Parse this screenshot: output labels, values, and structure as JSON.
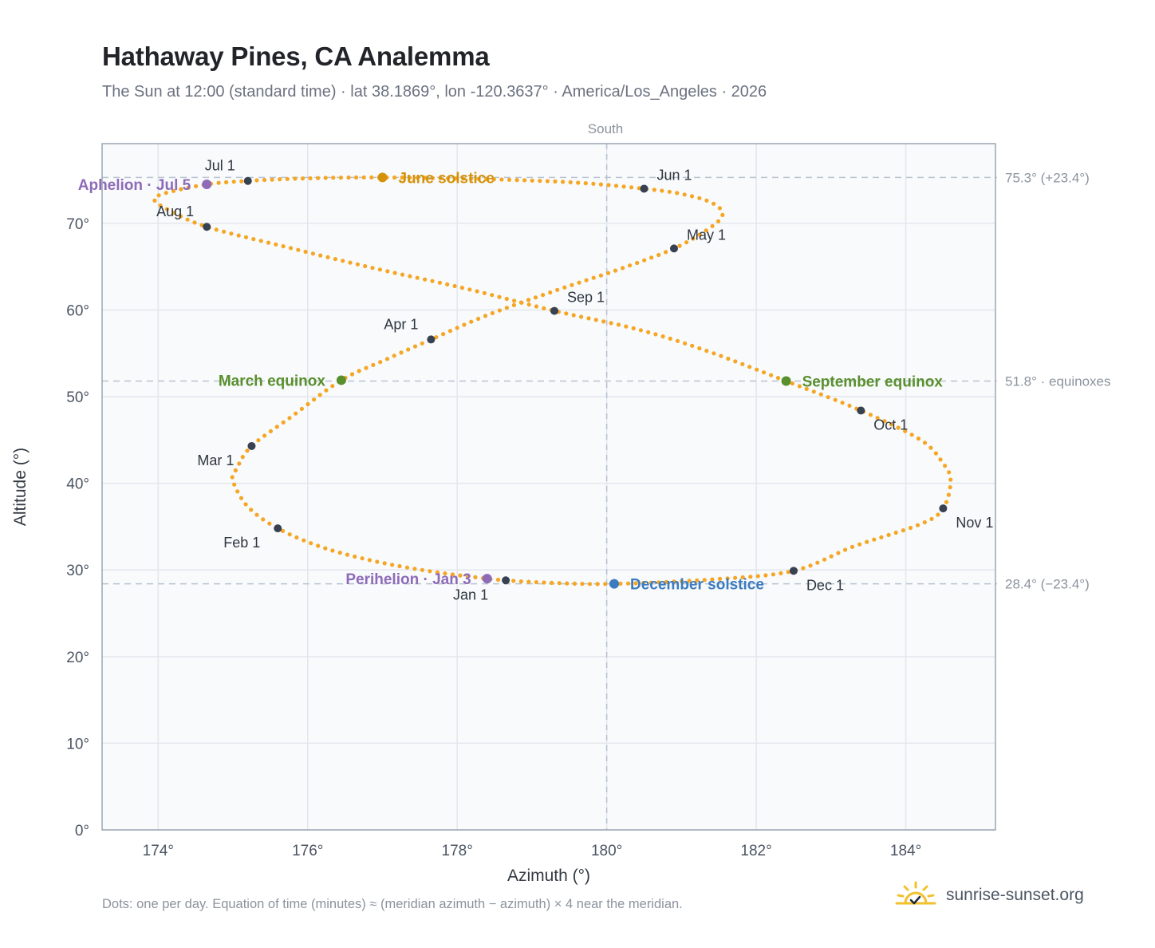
{
  "header": {
    "title": "Hathaway Pines, CA Analemma",
    "subtitle": "The Sun at 12:00 (standard time) · lat 38.1869°, lon -120.3637° · America/Los_Angeles · 2026"
  },
  "footer": {
    "note": "Dots: one per day. Equation of time (minutes) ≈ (meridian azimuth − azimuth) × 4 near the meridian.",
    "brand": "sunrise-sunset.org"
  },
  "colors": {
    "analemma": "#f5a623",
    "month_marker": "#374151",
    "solstice_june": "#d4920b",
    "solstice_december": "#3b7bbf",
    "equinox": "#5a8f2e",
    "apsis": "#8e6bb8",
    "grid": "#e3e7ec",
    "reference_line": "#b7c3cf",
    "plot_background": "#f8fafc",
    "frame": "#9ba6b4"
  },
  "chart_data": {
    "type": "scatter",
    "title": "Hathaway Pines, CA Analemma",
    "xlabel": "Azimuth (°)",
    "ylabel": "Altitude (°)",
    "xlim": [
      173.25,
      185.2
    ],
    "ylim": [
      0,
      79.2
    ],
    "x_ticks": [
      174,
      176,
      178,
      180,
      182,
      184
    ],
    "x_tick_labels": [
      "174°",
      "176°",
      "178°",
      "180°",
      "182°",
      "184°"
    ],
    "y_ticks": [
      0,
      10,
      20,
      30,
      40,
      50,
      60,
      70
    ],
    "y_tick_labels": [
      "0°",
      "10°",
      "20°",
      "30°",
      "40°",
      "50°",
      "60°",
      "70°"
    ],
    "grid": true,
    "meridian": {
      "azimuth": 180,
      "label": "South"
    },
    "reference_lines": [
      {
        "altitude": 75.3,
        "label": "75.3° (+23.4°)"
      },
      {
        "altitude": 51.8,
        "label": "51.8° · equinoxes"
      },
      {
        "altitude": 28.4,
        "label": "28.4° (−23.4°)"
      }
    ],
    "analemma_path": [
      [
        178.65,
        28.8
      ],
      [
        178.2,
        29.2
      ],
      [
        177.6,
        29.9
      ],
      [
        176.9,
        31.0
      ],
      [
        176.2,
        32.6
      ],
      [
        175.6,
        34.8
      ],
      [
        175.2,
        37.3
      ],
      [
        175.0,
        40.3
      ],
      [
        175.05,
        41.7
      ],
      [
        175.25,
        44.3
      ],
      [
        175.8,
        47.8
      ],
      [
        176.45,
        51.9
      ],
      [
        177.05,
        54.3
      ],
      [
        177.65,
        56.6
      ],
      [
        178.4,
        59.4
      ],
      [
        179.3,
        62.2
      ],
      [
        180.2,
        64.8
      ],
      [
        180.9,
        67.1
      ],
      [
        181.35,
        69.3
      ],
      [
        181.55,
        71.0
      ],
      [
        181.4,
        72.4
      ],
      [
        181.0,
        73.4
      ],
      [
        180.5,
        74.0
      ],
      [
        179.6,
        74.7
      ],
      [
        178.4,
        75.1
      ],
      [
        177.0,
        75.3
      ],
      [
        176.0,
        75.2
      ],
      [
        175.2,
        74.9
      ],
      [
        174.65,
        74.5
      ],
      [
        174.1,
        73.5
      ],
      [
        173.95,
        72.7
      ],
      [
        174.15,
        71.5
      ],
      [
        174.65,
        69.6
      ],
      [
        175.7,
        67.3
      ],
      [
        176.9,
        64.8
      ],
      [
        178.15,
        62.4
      ],
      [
        179.3,
        59.9
      ],
      [
        180.4,
        57.8
      ],
      [
        181.3,
        55.4
      ],
      [
        182.4,
        51.8
      ],
      [
        183.4,
        48.4
      ],
      [
        184.2,
        45.0
      ],
      [
        184.5,
        42.3
      ],
      [
        184.6,
        40.3
      ],
      [
        184.5,
        37.1
      ],
      [
        184.2,
        35.3
      ],
      [
        183.3,
        32.7
      ],
      [
        182.5,
        29.9
      ],
      [
        181.4,
        28.9
      ],
      [
        180.1,
        28.4
      ],
      [
        179.3,
        28.5
      ],
      [
        178.65,
        28.8
      ]
    ],
    "dots_per_day": 365,
    "month_markers": [
      {
        "label": "Jan 1",
        "azimuth": 178.65,
        "altitude": 28.8,
        "label_pos": "below-left"
      },
      {
        "label": "Feb 1",
        "azimuth": 175.6,
        "altitude": 34.8,
        "label_pos": "below-left"
      },
      {
        "label": "Mar 1",
        "azimuth": 175.25,
        "altitude": 44.3,
        "label_pos": "below-left"
      },
      {
        "label": "Apr 1",
        "azimuth": 177.65,
        "altitude": 56.6,
        "label_pos": "above-left"
      },
      {
        "label": "May 1",
        "azimuth": 180.9,
        "altitude": 67.1,
        "label_pos": "above-right"
      },
      {
        "label": "Jun 1",
        "azimuth": 180.5,
        "altitude": 74.0,
        "label_pos": "above-right"
      },
      {
        "label": "Jul 1",
        "azimuth": 175.2,
        "altitude": 74.9,
        "label_pos": "above-left"
      },
      {
        "label": "Aug 1",
        "azimuth": 174.65,
        "altitude": 69.6,
        "label_pos": "above-left"
      },
      {
        "label": "Sep 1",
        "azimuth": 179.3,
        "altitude": 59.9,
        "label_pos": "above-right"
      },
      {
        "label": "Oct 1",
        "azimuth": 183.4,
        "altitude": 48.4,
        "label_pos": "below-right"
      },
      {
        "label": "Nov 1",
        "azimuth": 184.5,
        "altitude": 37.1,
        "label_pos": "below-right"
      },
      {
        "label": "Dec 1",
        "azimuth": 182.5,
        "altitude": 29.9,
        "label_pos": "below-right"
      }
    ],
    "events": [
      {
        "label": "June solstice",
        "azimuth": 177.0,
        "altitude": 75.3,
        "color": "#d4920b",
        "label_pos": "right"
      },
      {
        "label": "December solstice",
        "azimuth": 180.1,
        "altitude": 28.4,
        "color": "#3b7bbf",
        "label_pos": "right"
      },
      {
        "label": "March equinox",
        "azimuth": 176.45,
        "altitude": 51.9,
        "color": "#5a8f2e",
        "label_pos": "left"
      },
      {
        "label": "September equinox",
        "azimuth": 182.4,
        "altitude": 51.8,
        "color": "#5a8f2e",
        "label_pos": "right"
      },
      {
        "label": "Aphelion · Jul 5",
        "azimuth": 174.65,
        "altitude": 74.5,
        "color": "#8e6bb8",
        "label_pos": "left"
      },
      {
        "label": "Perihelion · Jan 3",
        "azimuth": 178.4,
        "altitude": 29.0,
        "color": "#8e6bb8",
        "label_pos": "left"
      }
    ]
  }
}
